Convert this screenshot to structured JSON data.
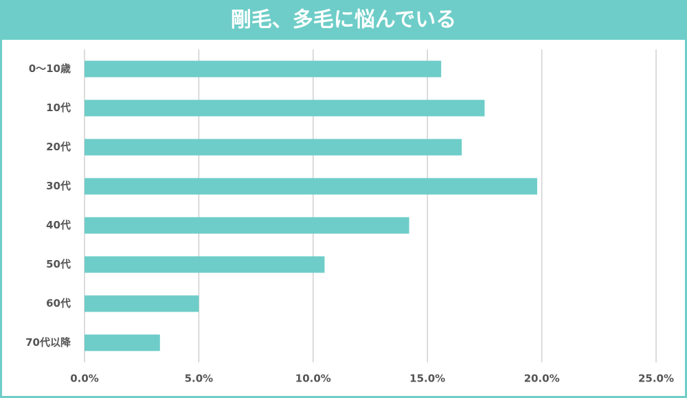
{
  "chart_data": {
    "type": "bar",
    "orientation": "horizontal",
    "title": "剛毛、多毛に悩んでいる",
    "categories": [
      "0〜10歳",
      "10代",
      "20代",
      "30代",
      "40代",
      "50代",
      "60代",
      "70代以降"
    ],
    "values": [
      15.6,
      17.5,
      16.5,
      19.8,
      14.2,
      10.5,
      5.0,
      3.3
    ],
    "color": "#6ecdc8",
    "xlim": [
      0,
      25
    ],
    "xticks": [
      {
        "value": 0,
        "label": "0.0%"
      },
      {
        "value": 5,
        "label": "5.0%"
      },
      {
        "value": 10,
        "label": "10.0%"
      },
      {
        "value": 15,
        "label": "15.0%"
      },
      {
        "value": 20,
        "label": "20.0%"
      },
      {
        "value": 25,
        "label": "25.0%"
      }
    ],
    "grid": true
  }
}
